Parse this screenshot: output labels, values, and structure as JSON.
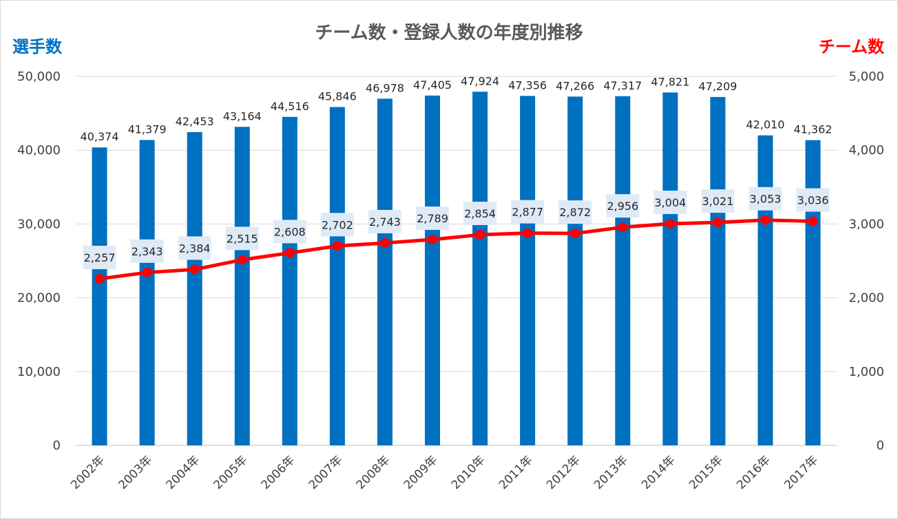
{
  "chart_data": {
    "type": "bar",
    "title": "チーム数・登録人数の年度別推移",
    "y_left_label": "選手数",
    "y_right_label": "チーム数",
    "categories": [
      "2002年",
      "2003年",
      "2004年",
      "2005年",
      "2006年",
      "2007年",
      "2008年",
      "2009年",
      "2010年",
      "2011年",
      "2012年",
      "2013年",
      "2014年",
      "2015年",
      "2016年",
      "2017年"
    ],
    "series": [
      {
        "kind": "bar",
        "axis": "left",
        "color": "#0070c0",
        "values": [
          40374,
          41379,
          42453,
          43164,
          44516,
          45846,
          46978,
          47405,
          47924,
          47356,
          47266,
          47317,
          47821,
          47209,
          42010,
          41362
        ],
        "labels": [
          "40,374",
          "41,379",
          "42,453",
          "43,164",
          "44,516",
          "45,846",
          "46,978",
          "47,405",
          "47,924",
          "47,356",
          "47,266",
          "47,317",
          "47,821",
          "47,209",
          "42,010",
          "41,362"
        ]
      },
      {
        "kind": "line",
        "axis": "right",
        "color": "#ff0000",
        "values": [
          2257,
          2343,
          2384,
          2515,
          2608,
          2702,
          2743,
          2789,
          2854,
          2877,
          2872,
          2956,
          3004,
          3021,
          3053,
          3036
        ],
        "labels": [
          "2,257",
          "2,343",
          "2,384",
          "2,515",
          "2,608",
          "2,702",
          "2,743",
          "2,789",
          "2,854",
          "2,877",
          "2,872",
          "2,956",
          "3,004",
          "3,021",
          "3,053",
          "3,036"
        ]
      }
    ],
    "ylim_left": [
      0,
      50000
    ],
    "ylim_right": [
      0,
      5000
    ],
    "y_left_ticks": [
      "0",
      "10,000",
      "20,000",
      "30,000",
      "40,000",
      "50,000"
    ],
    "y_right_ticks": [
      "0",
      "1,000",
      "2,000",
      "3,000",
      "4,000",
      "5,000"
    ],
    "grid": true,
    "label_bg_color": "#deebf7",
    "left_title_color": "#0070c0",
    "right_title_color": "#ff0000"
  }
}
